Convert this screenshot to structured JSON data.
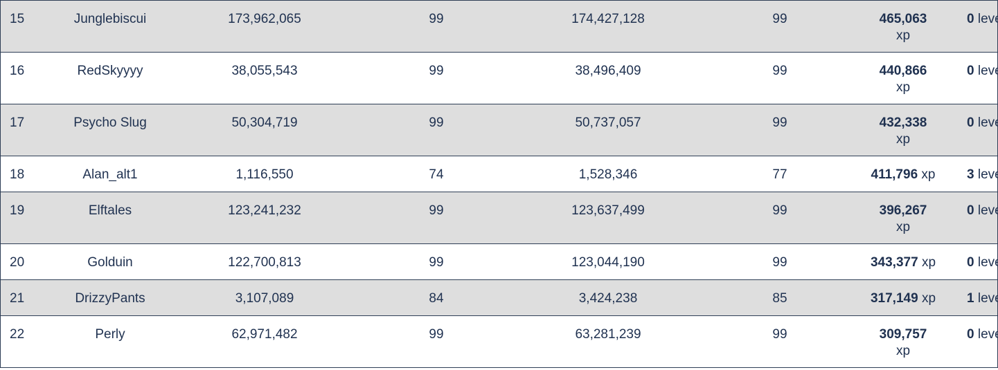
{
  "rows": [
    {
      "rank": "15",
      "name": "Junglebiscui",
      "start_xp": "173,962,065",
      "start_level": "99",
      "end_xp": "174,427,128",
      "end_level": "99",
      "gained_xp": "465,063",
      "xp_unit": "xp",
      "gained_levels": "0",
      "levels_unit": "levels",
      "shaded": true,
      "wrap": true
    },
    {
      "rank": "16",
      "name": "RedSkyyyy",
      "start_xp": "38,055,543",
      "start_level": "99",
      "end_xp": "38,496,409",
      "end_level": "99",
      "gained_xp": "440,866",
      "xp_unit": "xp",
      "gained_levels": "0",
      "levels_unit": "levels",
      "shaded": false,
      "wrap": true
    },
    {
      "rank": "17",
      "name": "Psycho Slug",
      "start_xp": "50,304,719",
      "start_level": "99",
      "end_xp": "50,737,057",
      "end_level": "99",
      "gained_xp": "432,338",
      "xp_unit": "xp",
      "gained_levels": "0",
      "levels_unit": "levels",
      "shaded": true,
      "wrap": true
    },
    {
      "rank": "18",
      "name": "Alan_alt1",
      "start_xp": "1,116,550",
      "start_level": "74",
      "end_xp": "1,528,346",
      "end_level": "77",
      "gained_xp": "411,796",
      "xp_unit": "xp",
      "gained_levels": "3",
      "levels_unit": "levels",
      "shaded": false,
      "wrap": false
    },
    {
      "rank": "19",
      "name": "Elftales",
      "start_xp": "123,241,232",
      "start_level": "99",
      "end_xp": "123,637,499",
      "end_level": "99",
      "gained_xp": "396,267",
      "xp_unit": "xp",
      "gained_levels": "0",
      "levels_unit": "levels",
      "shaded": true,
      "wrap": true
    },
    {
      "rank": "20",
      "name": "Golduin",
      "start_xp": "122,700,813",
      "start_level": "99",
      "end_xp": "123,044,190",
      "end_level": "99",
      "gained_xp": "343,377",
      "xp_unit": "xp",
      "gained_levels": "0",
      "levels_unit": "levels",
      "shaded": false,
      "wrap": false
    },
    {
      "rank": "21",
      "name": "DrizzyPants",
      "start_xp": "3,107,089",
      "start_level": "84",
      "end_xp": "3,424,238",
      "end_level": "85",
      "gained_xp": "317,149",
      "xp_unit": "xp",
      "gained_levels": "1",
      "levels_unit": "levels",
      "shaded": true,
      "wrap": false
    },
    {
      "rank": "22",
      "name": "Perly",
      "start_xp": "62,971,482",
      "start_level": "99",
      "end_xp": "63,281,239",
      "end_level": "99",
      "gained_xp": "309,757",
      "xp_unit": "xp",
      "gained_levels": "0",
      "levels_unit": "levels",
      "shaded": false,
      "wrap": true
    }
  ]
}
